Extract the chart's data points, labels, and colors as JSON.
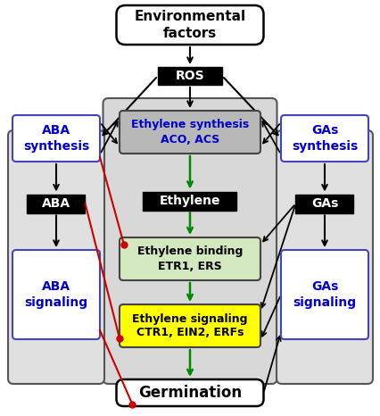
{
  "title": "Environmental\nfactors",
  "ros_label": "ROS",
  "ethylene_synth_label": "Ethylene synthesis\nACO, ACS",
  "ethylene_label": "Ethylene",
  "ethylene_binding_label": "Ethylene binding\nETR1, ERS",
  "ethylene_signaling_label": "Ethylene signaling\nCTR1, EIN2, ERFs",
  "germination_label": "Germination",
  "aba_synth_label": "ABA\nsynthesis",
  "aba_label": "ABA",
  "aba_signaling_label": "ABA\nsignaling",
  "gas_synth_label": "GAs\nsynthesis",
  "gas_label": "GAs",
  "gas_signaling_label": "GAs\nsignaling",
  "center_panel_color": "#d8d8d8",
  "ethylene_synth_color": "#b8b8b8",
  "ethylene_binding_color": "#d4e8c0",
  "ethylene_signaling_color": "#ffff00",
  "side_panel_color": "#e0e0e0",
  "blue_text": "#0000cc",
  "green_arrow": "#008800",
  "red_color": "#cc0000"
}
